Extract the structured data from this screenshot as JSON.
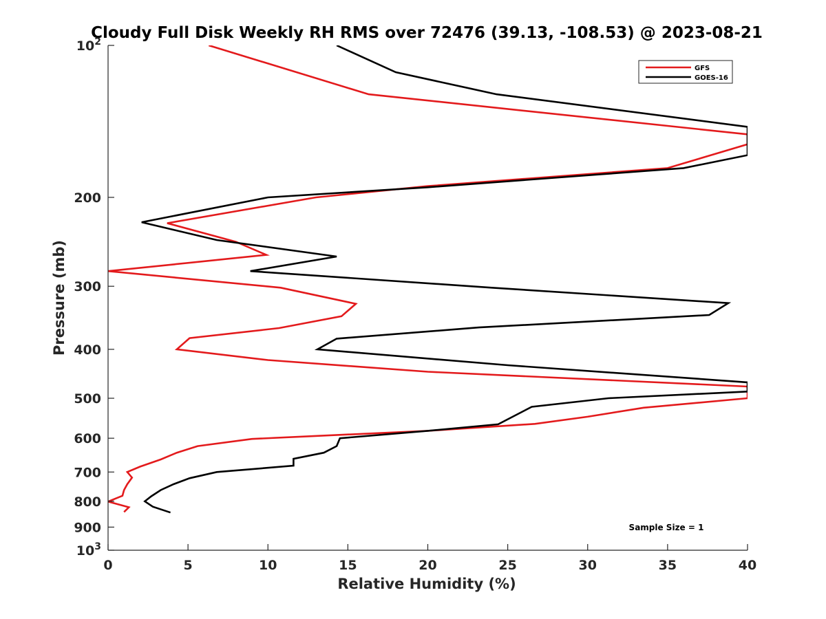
{
  "chart_data": {
    "type": "line",
    "title": "Cloudy Full Disk Weekly RH RMS over 72476 (39.13, -108.53) @ 2023-08-21",
    "xlabel": "Relative Humidity (%)",
    "ylabel": "Pressure (mb)",
    "xlim": [
      0,
      40
    ],
    "ylim": [
      100,
      1000
    ],
    "y_scale": "log",
    "y_reversed": true,
    "grid": false,
    "x_ticks": [
      0,
      5,
      10,
      15,
      20,
      25,
      30,
      35,
      40
    ],
    "y_ticks": [
      {
        "value": 100,
        "base": "10",
        "exp": "2"
      },
      {
        "value": 200,
        "label": "200"
      },
      {
        "value": 300,
        "label": "300"
      },
      {
        "value": 400,
        "label": "400"
      },
      {
        "value": 500,
        "label": "500"
      },
      {
        "value": 600,
        "label": "600"
      },
      {
        "value": 700,
        "label": "700"
      },
      {
        "value": 800,
        "label": "800"
      },
      {
        "value": 900,
        "label": "900"
      },
      {
        "value": 1000,
        "base": "10",
        "exp": "3"
      }
    ],
    "legend_position": "top-right",
    "annotation": "Sample Size = 1",
    "series": [
      {
        "name": "GFS",
        "color": "#e31a1c",
        "points": [
          [
            6.3,
            100
          ],
          [
            16.3,
            125
          ],
          [
            40,
            150
          ],
          [
            40,
            157
          ],
          [
            35,
            175
          ],
          [
            20,
            190
          ],
          [
            13,
            200
          ],
          [
            3.7,
            225
          ],
          [
            8,
            245
          ],
          [
            9.9,
            260
          ],
          [
            0,
            280
          ],
          [
            10.8,
            302
          ],
          [
            15.5,
            325
          ],
          [
            14.6,
            344
          ],
          [
            10.7,
            363
          ],
          [
            5.1,
            380
          ],
          [
            4.3,
            400
          ],
          [
            10,
            420
          ],
          [
            20,
            443
          ],
          [
            40,
            474
          ],
          [
            40,
            500
          ],
          [
            33.5,
            522
          ],
          [
            30,
            544
          ],
          [
            26.7,
            562
          ],
          [
            20,
            580
          ],
          [
            9,
            602
          ],
          [
            5.6,
            622
          ],
          [
            4.3,
            641
          ],
          [
            3.3,
            661
          ],
          [
            2,
            683
          ],
          [
            1.2,
            700
          ],
          [
            1.5,
            718
          ],
          [
            1.2,
            740
          ],
          [
            1.0,
            760
          ],
          [
            0.9,
            780
          ],
          [
            0,
            801
          ],
          [
            1.3,
            822
          ],
          [
            1.0,
            840
          ]
        ]
      },
      {
        "name": "GOES-16",
        "color": "#000000",
        "points": [
          [
            14.3,
            100
          ],
          [
            18,
            113
          ],
          [
            24.3,
            125
          ],
          [
            40,
            145
          ],
          [
            40,
            165
          ],
          [
            36,
            175
          ],
          [
            20,
            191
          ],
          [
            10,
            200
          ],
          [
            2.1,
            224
          ],
          [
            6.8,
            243
          ],
          [
            14.3,
            262
          ],
          [
            8.9,
            280
          ],
          [
            24,
            302
          ],
          [
            38.8,
            324
          ],
          [
            37.6,
            342
          ],
          [
            23.2,
            362
          ],
          [
            14.3,
            381
          ],
          [
            13.1,
            400
          ],
          [
            25,
            430
          ],
          [
            40,
            465
          ],
          [
            40,
            485
          ],
          [
            31.3,
            500
          ],
          [
            26.5,
            520
          ],
          [
            24.4,
            563
          ],
          [
            20,
            580
          ],
          [
            14.5,
            600
          ],
          [
            14.3,
            622
          ],
          [
            13.5,
            641
          ],
          [
            11.6,
            659
          ],
          [
            11.6,
            680
          ],
          [
            6.8,
            700
          ],
          [
            5.1,
            720
          ],
          [
            4.1,
            740
          ],
          [
            3.3,
            760
          ],
          [
            2.7,
            782
          ],
          [
            2.3,
            800
          ],
          [
            2.8,
            820
          ],
          [
            3.9,
            842
          ]
        ]
      }
    ]
  }
}
